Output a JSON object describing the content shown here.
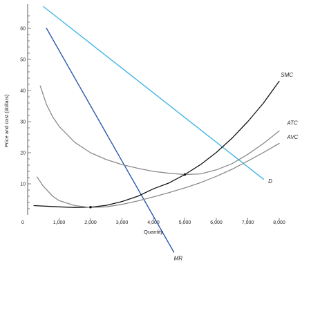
{
  "chart_data": {
    "type": "line",
    "xlabel": "Quantity",
    "ylabel": "Price and cost (dollars)",
    "origin_label": "0",
    "xlim": [
      0,
      9000
    ],
    "ylim": [
      -15,
      68
    ],
    "x_ticks": [
      1000,
      2000,
      3000,
      4000,
      5000,
      6000,
      7000,
      8000
    ],
    "x_tick_labels": [
      "1,000",
      "2,000",
      "3,000",
      "4,000",
      "5,000",
      "6,000",
      "7,000",
      "8,000"
    ],
    "y_ticks": [
      10,
      20,
      30,
      40,
      50,
      60
    ],
    "y_tick_labels": [
      "10",
      "20",
      "30",
      "40",
      "50",
      "60"
    ],
    "grid": false,
    "series": [
      {
        "name": "D",
        "color": "#3fb4e5",
        "x": [
          500,
          7500
        ],
        "y": [
          67,
          11.5
        ]
      },
      {
        "name": "MR",
        "color": "#2a5aa8",
        "x": [
          600,
          4650
        ],
        "y": [
          60,
          -12
        ]
      },
      {
        "name": "SMC",
        "color": "#111111",
        "x": [
          200,
          1000,
          1500,
          2000,
          2500,
          3000,
          3500,
          4000,
          4500,
          5000,
          5500,
          6000,
          6500,
          7000,
          7500,
          8000
        ],
        "y": [
          3.0,
          2.6,
          2.4,
          2.5,
          3.1,
          4.3,
          6.0,
          8.4,
          10.3,
          13.0,
          16.2,
          20.1,
          24.7,
          30.0,
          36.0,
          43.0
        ]
      },
      {
        "name": "ATC",
        "color": "#8a8a8a",
        "x": [
          400,
          600,
          800,
          1000,
          1500,
          2000,
          2500,
          3000,
          3500,
          4000,
          4500,
          5000,
          5500,
          6000,
          6500,
          7000,
          7500,
          8000
        ],
        "y": [
          41.5,
          35.5,
          31.5,
          28.5,
          23.3,
          20.0,
          17.8,
          16.2,
          15.0,
          14.0,
          13.4,
          13.0,
          13.2,
          14.5,
          16.5,
          19.5,
          23.0,
          27.0
        ]
      },
      {
        "name": "AVC",
        "color": "#8a8a8a",
        "x": [
          300,
          500,
          800,
          1000,
          1500,
          2000,
          2500,
          3000,
          3500,
          4000,
          4500,
          5000,
          5500,
          6000,
          6500,
          7000,
          7500,
          8000
        ],
        "y": [
          12.2,
          9.2,
          6.0,
          4.6,
          3.0,
          2.4,
          2.6,
          3.4,
          4.5,
          5.8,
          7.2,
          8.7,
          10.4,
          12.4,
          14.7,
          17.3,
          20.1,
          23.0
        ]
      }
    ],
    "labels": [
      {
        "text": "SMC",
        "x": 8050,
        "y": 44.5
      },
      {
        "text": "ATC",
        "x": 8250,
        "y": 29.0
      },
      {
        "text": "AVC",
        "x": 8250,
        "y": 24.5
      },
      {
        "text": "D",
        "x": 7650,
        "y": 10.2
      },
      {
        "text": "MR",
        "x": 4650,
        "y": -14.5
      }
    ],
    "points": [
      {
        "name": "SMC-AVC-intersection",
        "x": 2000,
        "y": 2.5
      },
      {
        "name": "SMC-ATC-intersection",
        "x": 5000,
        "y": 13.0
      }
    ]
  }
}
